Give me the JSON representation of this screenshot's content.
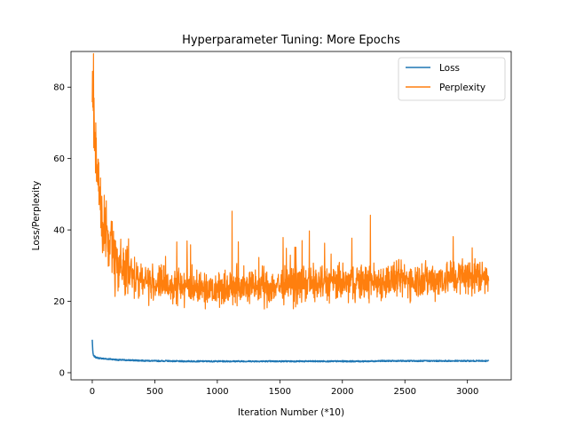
{
  "chart_data": {
    "type": "line",
    "title": "Hyperparameter Tuning: More Epochs",
    "xlabel": "Iteration Number (*10)",
    "ylabel": "Loss/Perplexity",
    "xlim": [
      -170,
      3350
    ],
    "ylim": [
      -2,
      90
    ],
    "x_ticks": [
      0,
      500,
      1000,
      1500,
      2000,
      2500,
      3000
    ],
    "y_ticks": [
      0,
      20,
      40,
      60,
      80
    ],
    "grid": false,
    "legend_position": "top-right",
    "series": [
      {
        "name": "Loss",
        "color": "#1f77b4",
        "x": [
          0,
          5,
          10,
          20,
          30,
          50,
          75,
          100,
          150,
          200,
          300,
          400,
          500,
          600,
          700,
          800,
          900,
          1000,
          1100,
          1200,
          1300,
          1400,
          1500,
          1600,
          1700,
          1800,
          1900,
          2000,
          2100,
          2200,
          2300,
          2400,
          2500,
          2600,
          2700,
          2800,
          2900,
          3000,
          3100,
          3170
        ],
        "y": [
          9.2,
          5.5,
          4.8,
          4.5,
          4.3,
          4.1,
          4.0,
          3.9,
          3.8,
          3.6,
          3.5,
          3.4,
          3.3,
          3.3,
          3.2,
          3.2,
          3.2,
          3.2,
          3.2,
          3.2,
          3.2,
          3.2,
          3.2,
          3.2,
          3.2,
          3.2,
          3.2,
          3.2,
          3.2,
          3.2,
          3.3,
          3.3,
          3.3,
          3.3,
          3.3,
          3.3,
          3.3,
          3.3,
          3.3,
          3.3
        ]
      },
      {
        "name": "Perplexity",
        "color": "#ff7f0e",
        "x": [
          0,
          5,
          10,
          15,
          20,
          30,
          40,
          50,
          60,
          75,
          100,
          125,
          150,
          175,
          200,
          250,
          300,
          350,
          400,
          450,
          500,
          600,
          700,
          800,
          900,
          1000,
          1100,
          1200,
          1300,
          1400,
          1500,
          1600,
          1700,
          1800,
          1900,
          2000,
          2100,
          2200,
          2300,
          2400,
          2500,
          2600,
          2700,
          2800,
          2900,
          3000,
          3100,
          3170
        ],
        "y": [
          75,
          86,
          70,
          80,
          66,
          62,
          57,
          52,
          48,
          44,
          40,
          37,
          35,
          33,
          31,
          29,
          28,
          27,
          26,
          25.5,
          25,
          24.5,
          24.5,
          24,
          24,
          24,
          24,
          24,
          24,
          24,
          24.5,
          24.5,
          25,
          25,
          25,
          25,
          25.5,
          25.5,
          25.5,
          26,
          26,
          26,
          26,
          26.5,
          27,
          27,
          27,
          27.5
        ]
      }
    ]
  }
}
